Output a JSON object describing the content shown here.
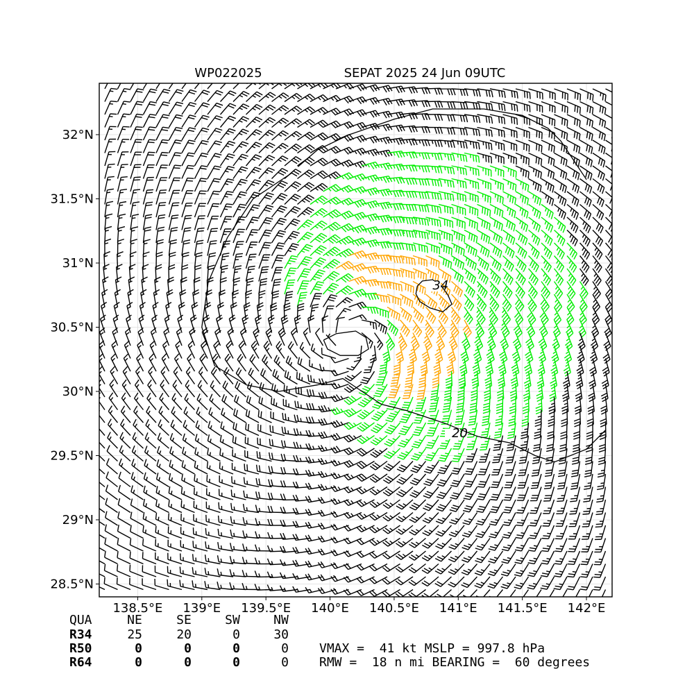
{
  "header": {
    "storm_id": "WP022025",
    "name_time": "SEPAT 2025 24 Jun 09UTC"
  },
  "map": {
    "lon_range": [
      138.2,
      142.2
    ],
    "lat_range": [
      28.4,
      32.4
    ],
    "lon_ticks": [
      {
        "value": 138.5,
        "label": "138.5°E"
      },
      {
        "value": 139.0,
        "label": "139°E"
      },
      {
        "value": 139.5,
        "label": "139.5°E"
      },
      {
        "value": 140.0,
        "label": "140°E"
      },
      {
        "value": 140.5,
        "label": "140.5°E"
      },
      {
        "value": 141.0,
        "label": "141°E"
      },
      {
        "value": 141.5,
        "label": "141.5°E"
      },
      {
        "value": 142.0,
        "label": "142°E"
      }
    ],
    "lat_ticks": [
      {
        "value": 32.0,
        "label": "32°N"
      },
      {
        "value": 31.5,
        "label": "31.5°N"
      },
      {
        "value": 31.0,
        "label": "31°N"
      },
      {
        "value": 30.5,
        "label": "30.5°N"
      },
      {
        "value": 30.0,
        "label": "30°N"
      },
      {
        "value": 29.5,
        "label": "29.5°N"
      },
      {
        "value": 29.0,
        "label": "29°N"
      },
      {
        "value": 28.5,
        "label": "28.5°N"
      }
    ],
    "grid": true,
    "storm_center": {
      "lon": 140.15,
      "lat": 30.4
    },
    "barb_colors": {
      "below_34kt": "#000000",
      "34_to_49kt": "#00ee00",
      "50_to_63kt": "#ffa500"
    },
    "contours": [
      {
        "value": 20,
        "label": "20",
        "label_at": {
          "lon": 140.95,
          "lat": 29.65
        },
        "points": [
          [
            139.7,
            31.7
          ],
          [
            139.4,
            31.5
          ],
          [
            139.2,
            31.2
          ],
          [
            139.05,
            30.85
          ],
          [
            139.0,
            30.5
          ],
          [
            139.1,
            30.2
          ],
          [
            139.35,
            30.05
          ],
          [
            139.6,
            30.0
          ],
          [
            139.9,
            30.05
          ],
          [
            140.1,
            30.1
          ],
          [
            140.25,
            30.0
          ],
          [
            140.4,
            29.9
          ],
          [
            140.6,
            29.85
          ],
          [
            140.9,
            29.75
          ],
          [
            141.15,
            29.65
          ],
          [
            141.4,
            29.6
          ],
          [
            141.6,
            29.5
          ],
          [
            141.75,
            29.45
          ],
          [
            142.0,
            29.55
          ],
          [
            142.15,
            29.7
          ]
        ]
      },
      {
        "value": 20,
        "label": "",
        "points": [
          [
            139.75,
            31.75
          ],
          [
            139.9,
            31.88
          ],
          [
            140.15,
            32.0
          ],
          [
            140.5,
            32.12
          ],
          [
            140.8,
            32.2
          ],
          [
            141.2,
            32.2
          ],
          [
            141.5,
            32.15
          ],
          [
            141.7,
            32.05
          ],
          [
            141.8,
            31.95
          ],
          [
            141.9,
            31.8
          ],
          [
            142.0,
            31.65
          ]
        ]
      },
      {
        "value": 34,
        "label": "34",
        "label_at": {
          "lon": 140.8,
          "lat": 30.8
        },
        "points": [
          [
            140.68,
            30.82
          ],
          [
            140.72,
            30.86
          ],
          [
            140.8,
            30.87
          ],
          [
            140.87,
            30.82
          ],
          [
            140.92,
            30.75
          ],
          [
            140.95,
            30.68
          ],
          [
            140.88,
            30.62
          ],
          [
            140.78,
            30.65
          ],
          [
            140.7,
            30.7
          ],
          [
            140.67,
            30.76
          ],
          [
            140.68,
            30.82
          ]
        ]
      },
      {
        "value": 20,
        "label": "",
        "points": [
          [
            139.95,
            30.4
          ],
          [
            140.05,
            30.45
          ],
          [
            140.2,
            30.47
          ],
          [
            140.28,
            30.42
          ],
          [
            140.3,
            30.33
          ],
          [
            140.22,
            30.28
          ],
          [
            140.08,
            30.28
          ],
          [
            139.98,
            30.33
          ],
          [
            139.95,
            30.4
          ]
        ]
      }
    ]
  },
  "radii_table": {
    "header": [
      "QUA",
      "NE",
      "SE",
      "SW",
      "NW"
    ],
    "rows": [
      {
        "label": "R34",
        "values": [
          "25",
          "20",
          "0",
          "30"
        ]
      },
      {
        "label": "R50",
        "values": [
          "0",
          "0",
          "0",
          "0"
        ]
      },
      {
        "label": "R64",
        "values": [
          "0",
          "0",
          "0",
          "0"
        ]
      }
    ]
  },
  "stats": {
    "line1": "VMAX =  41 kt MSLP = 997.8 hPa",
    "line2": "RMW =  18 n mi BEARING =  60 degrees"
  }
}
